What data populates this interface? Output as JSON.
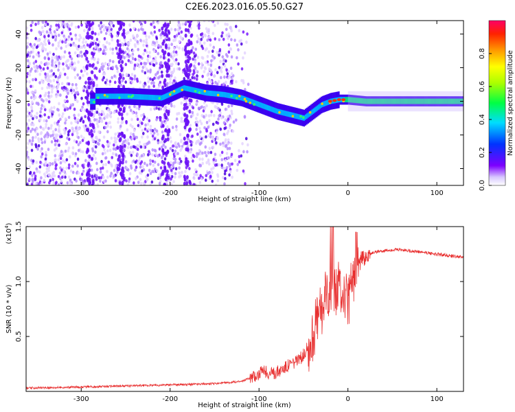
{
  "title": "C2E6.2023.016.05.50.G27",
  "chart_data": [
    {
      "type": "heatmap",
      "xlabel": "Height of straight line (km)",
      "ylabel": "Frequency (Hz)",
      "xlim": [
        -362,
        130
      ],
      "ylim": [
        -50,
        48
      ],
      "xticks": [
        -300,
        -200,
        -100,
        0,
        100
      ],
      "xtick_labels": [
        "-300",
        "-200",
        "-100",
        "0",
        "100"
      ],
      "yticks": [
        -40,
        -20,
        0,
        20,
        40
      ],
      "ytick_labels": [
        "-40",
        "-20",
        "0",
        "20",
        "40"
      ],
      "colorbar": {
        "label": "Normalized spectral amplitude",
        "range": [
          0,
          1
        ],
        "ticks": [
          0.0,
          0.2,
          0.4,
          0.6,
          0.8
        ],
        "tick_labels": [
          "0.0",
          "0.2",
          "0.4",
          "0.6",
          "0.8"
        ]
      },
      "ridge": {
        "x": [
          -285,
          -250,
          -210,
          -185,
          -160,
          -140,
          -120,
          -100,
          -80,
          -65,
          -50,
          -40,
          -30,
          -20,
          -10,
          0,
          20,
          60,
          100,
          130
        ],
        "y": [
          3,
          3,
          2,
          8,
          5,
          4,
          2,
          -2,
          -6,
          -8,
          -10,
          -6,
          -2,
          0,
          1,
          1,
          0,
          0,
          0,
          0
        ]
      }
    },
    {
      "type": "line",
      "xlabel": "Height of straight line (km)",
      "ylabel": "SNR (10 * v/v)",
      "yscale_label": "(x10",
      "yscale_exp": "4",
      "xlim": [
        -362,
        130
      ],
      "ylim": [
        0,
        1.5
      ],
      "xticks": [
        -300,
        -200,
        -100,
        0,
        100
      ],
      "xtick_labels": [
        "-300",
        "-200",
        "-100",
        "0",
        "100"
      ],
      "yticks": [
        0.5,
        1.0,
        1.5
      ],
      "ytick_labels": [
        "0.5",
        "1.0",
        "1.5"
      ],
      "series": [
        {
          "color": "#e83030",
          "x": [
            -362,
            -300,
            -250,
            -200,
            -150,
            -120,
            -105,
            -95,
            -85,
            -75,
            -65,
            -55,
            -45,
            -40,
            -35,
            -30,
            -25,
            -20,
            -15,
            -10,
            -5,
            0,
            5,
            10,
            15,
            20,
            25,
            30,
            40,
            50,
            60,
            70,
            80,
            90,
            100,
            110,
            120,
            130
          ],
          "y": [
            0.03,
            0.04,
            0.05,
            0.06,
            0.07,
            0.09,
            0.14,
            0.18,
            0.16,
            0.2,
            0.25,
            0.28,
            0.4,
            0.5,
            0.65,
            0.75,
            0.85,
            0.95,
            0.9,
            0.95,
            0.9,
            0.8,
            1.0,
            1.1,
            1.2,
            1.22,
            1.25,
            1.27,
            1.28,
            1.29,
            1.29,
            1.28,
            1.27,
            1.26,
            1.25,
            1.24,
            1.23,
            1.22
          ]
        }
      ]
    }
  ]
}
